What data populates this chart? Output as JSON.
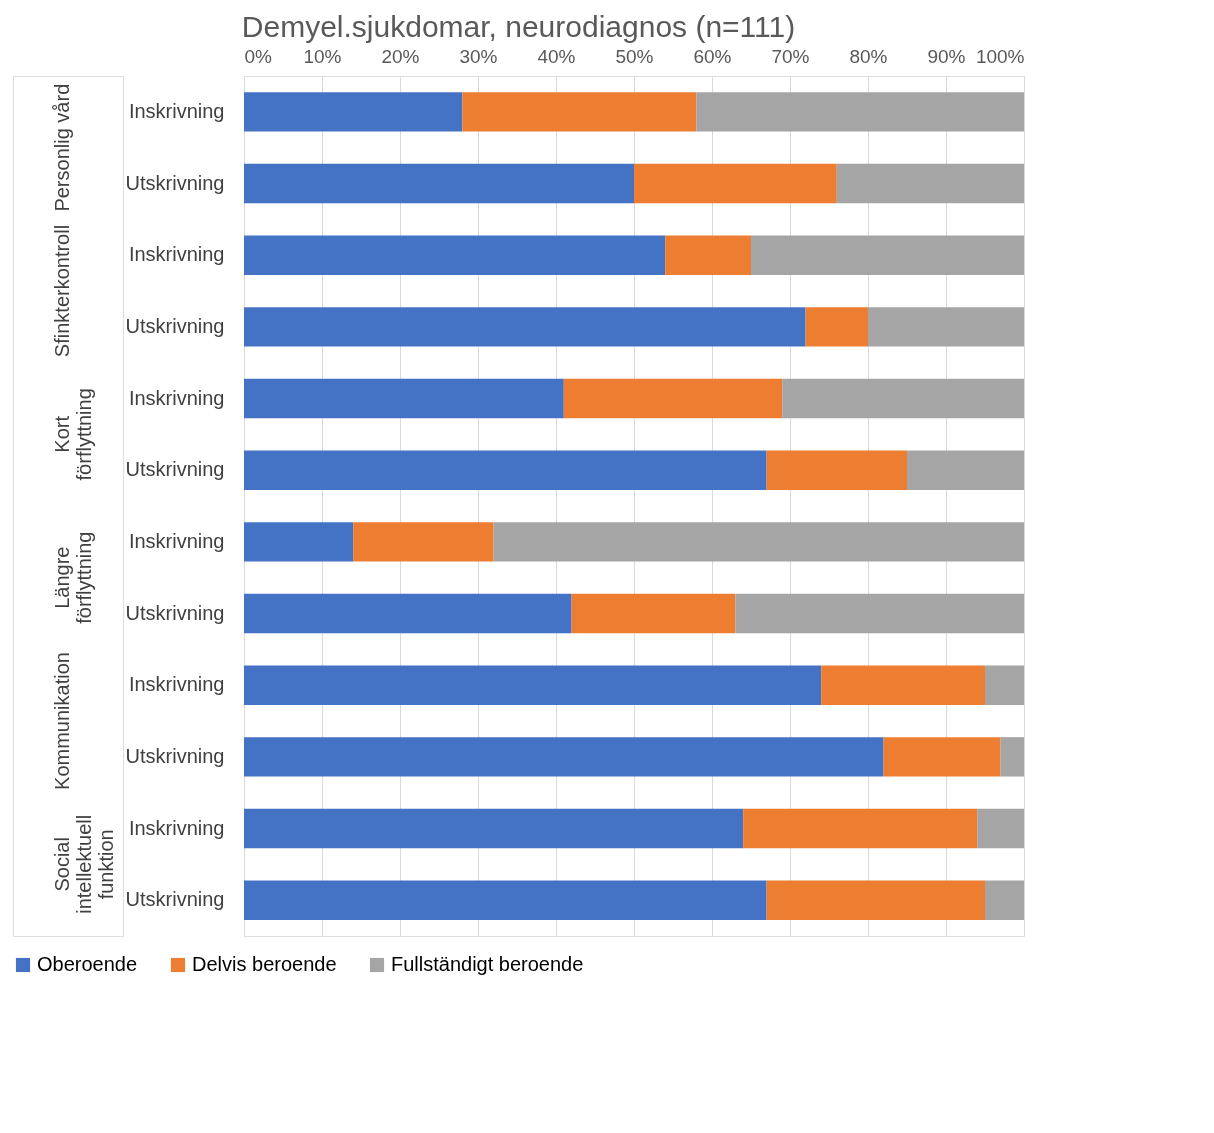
{
  "chart_data": {
    "type": "bar",
    "orientation": "horizontal",
    "stacked": true,
    "title": "Demyel.sjukdomar, neurodiagnos (n=111)",
    "categories": [
      "Inskrivning",
      "Utskrivning",
      "Inskrivning",
      "Utskrivning",
      "Inskrivning",
      "Utskrivning",
      "Inskrivning",
      "Utskrivning",
      "Inskrivning",
      "Utskrivning",
      "Inskrivning",
      "Utskrivning"
    ],
    "annotations": [
      "Personlig vård",
      "Sfinkterkontroll",
      "Kort förflyttning",
      "Längre förflyttning",
      "Kommunikation",
      "Social intellektuell funktion"
    ],
    "series": [
      {
        "name": "Oberoende",
        "color": "#4472c4",
        "values": [
          28,
          50,
          54,
          72,
          41,
          67,
          14,
          42,
          74,
          82,
          64,
          67
        ]
      },
      {
        "name": "Delvis beroende",
        "color": "#ed7d31",
        "values": [
          30,
          26,
          11,
          8,
          28,
          18,
          18,
          21,
          21,
          15,
          30,
          28
        ]
      },
      {
        "name": "Fullständigt beroende",
        "color": "#a5a5a5",
        "values": [
          42,
          24,
          35,
          20,
          31,
          15,
          68,
          37,
          5,
          3,
          6,
          5
        ]
      }
    ],
    "xlim": [
      0,
      100
    ],
    "xticks": [
      {
        "value": 0,
        "label": "0%"
      },
      {
        "value": 10,
        "label": "10%"
      },
      {
        "value": 20,
        "label": "20%"
      },
      {
        "value": 30,
        "label": "30%"
      },
      {
        "value": 40,
        "label": "40%"
      },
      {
        "value": 50,
        "label": "50%"
      },
      {
        "value": 60,
        "label": "60%"
      },
      {
        "value": 70,
        "label": "70%"
      },
      {
        "value": 80,
        "label": "80%"
      },
      {
        "value": 90,
        "label": "90%"
      },
      {
        "value": 100,
        "label": "100%"
      }
    ],
    "grid": "x",
    "legend": "bottom"
  }
}
